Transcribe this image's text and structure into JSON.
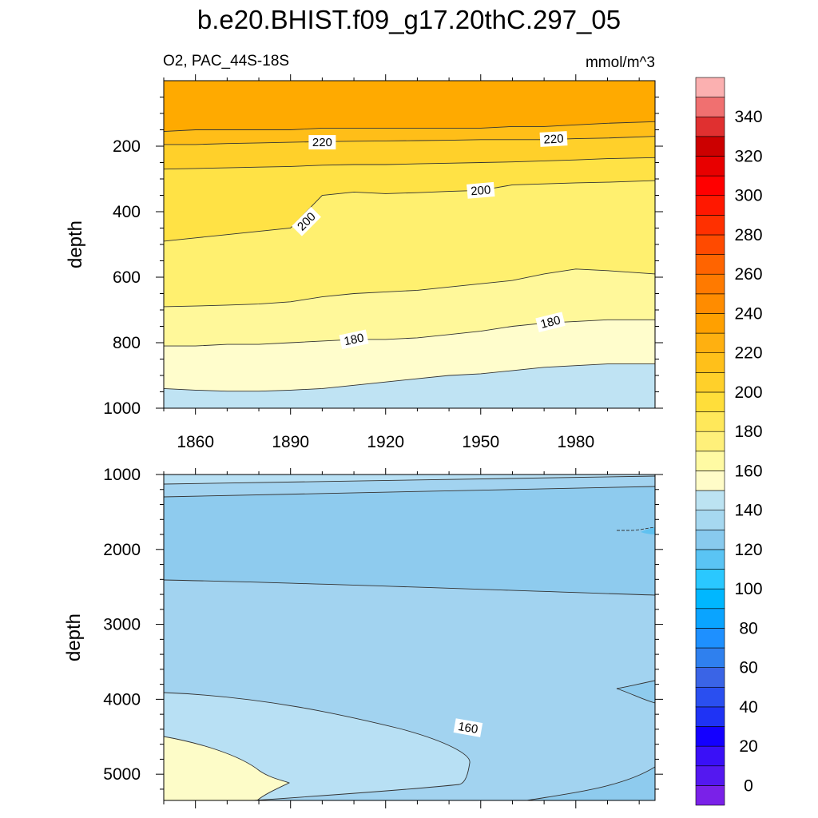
{
  "title": "b.e20.BHIST.f09_g17.20thC.297_05",
  "subtitle_left": "O2, PAC_44S-18S",
  "subtitle_right": "mmol/m^3",
  "colorbar": {
    "labels": [
      "0",
      "20",
      "40",
      "60",
      "80",
      "100",
      "120",
      "140",
      "160",
      "180",
      "200",
      "220",
      "240",
      "260",
      "280",
      "300",
      "320",
      "340"
    ],
    "colors": [
      "#7a21e8",
      "#5418f0",
      "#3a10f7",
      "#1400ff",
      "#1f33f5",
      "#2a4ff0",
      "#3a64e6",
      "#2f80ee",
      "#1e90ff",
      "#0aa4ff",
      "#00b7ff",
      "#2ac8ff",
      "#5ac4f4",
      "#88caee",
      "#a6d8f0",
      "#bce3f2",
      "#fffcc8",
      "#fffaa3",
      "#fff07a",
      "#ffe85a",
      "#ffde3a",
      "#ffd02a",
      "#ffc01a",
      "#ffb010",
      "#ffa000",
      "#ff8c00",
      "#ff7a00",
      "#ff6400",
      "#ff4a00",
      "#ff3000",
      "#ff1800",
      "#ff0000",
      "#e80000",
      "#cc0000",
      "#e03030",
      "#f07070",
      "#fbb0b0"
    ]
  },
  "chart_data": [
    {
      "type": "contour",
      "panel": "upper",
      "xlabel": "",
      "ylabel": "depth",
      "xlim": [
        1850,
        2005
      ],
      "ylim": [
        1000,
        0
      ],
      "x_ticks": [
        "1860",
        "1890",
        "1920",
        "1950",
        "1980"
      ],
      "y_ticks": [
        "200",
        "400",
        "600",
        "800",
        "1000"
      ],
      "years": [
        1850,
        1860,
        1870,
        1880,
        1890,
        1900,
        1910,
        1920,
        1930,
        1940,
        1950,
        1960,
        1970,
        1980,
        1990,
        2005
      ],
      "contour_lines": [
        {
          "level": 230,
          "depths": [
            155,
            150,
            150,
            150,
            150,
            145,
            145,
            145,
            145,
            145,
            145,
            140,
            140,
            135,
            130,
            125
          ]
        },
        {
          "level": 220,
          "depths": [
            195,
            195,
            192,
            190,
            188,
            186,
            185,
            184,
            183,
            182,
            180,
            180,
            180,
            177,
            175,
            170
          ]
        },
        {
          "level": 210,
          "depths": [
            270,
            268,
            266,
            264,
            262,
            258,
            256,
            256,
            254,
            252,
            250,
            248,
            245,
            242,
            238,
            235
          ]
        },
        {
          "level": 200,
          "depths": [
            490,
            480,
            470,
            460,
            450,
            350,
            340,
            345,
            342,
            338,
            335,
            318,
            315,
            312,
            310,
            305
          ]
        },
        {
          "level": 190,
          "depths": [
            690,
            688,
            685,
            682,
            675,
            660,
            650,
            645,
            640,
            630,
            620,
            610,
            590,
            575,
            580,
            590
          ]
        },
        {
          "level": 180,
          "depths": [
            810,
            810,
            805,
            805,
            800,
            795,
            790,
            790,
            785,
            775,
            765,
            750,
            740,
            735,
            730,
            730
          ]
        },
        {
          "level": 170,
          "depths": [
            940,
            945,
            948,
            948,
            945,
            940,
            930,
            920,
            910,
            900,
            895,
            885,
            875,
            870,
            865,
            865
          ]
        }
      ],
      "line_labels": [
        {
          "text": "220",
          "year": 1900,
          "depth": 188
        },
        {
          "text": "220",
          "year": 1973,
          "depth": 178
        },
        {
          "text": "200",
          "year": 1950,
          "depth": 335
        },
        {
          "text": "200",
          "year": 1895,
          "depth": 430
        },
        {
          "text": "180",
          "year": 1910,
          "depth": 790
        },
        {
          "text": "180",
          "year": 1972,
          "depth": 737
        }
      ]
    },
    {
      "type": "contour",
      "panel": "lower",
      "xlabel": "",
      "ylabel": "depth",
      "xlim": [
        1850,
        2005
      ],
      "ylim": [
        5350,
        1000
      ],
      "y_ticks": [
        "1000",
        "2000",
        "3000",
        "4000",
        "5000"
      ],
      "line_labels": [
        {
          "text": "160",
          "year": 1946,
          "depth": 4380
        }
      ]
    }
  ]
}
